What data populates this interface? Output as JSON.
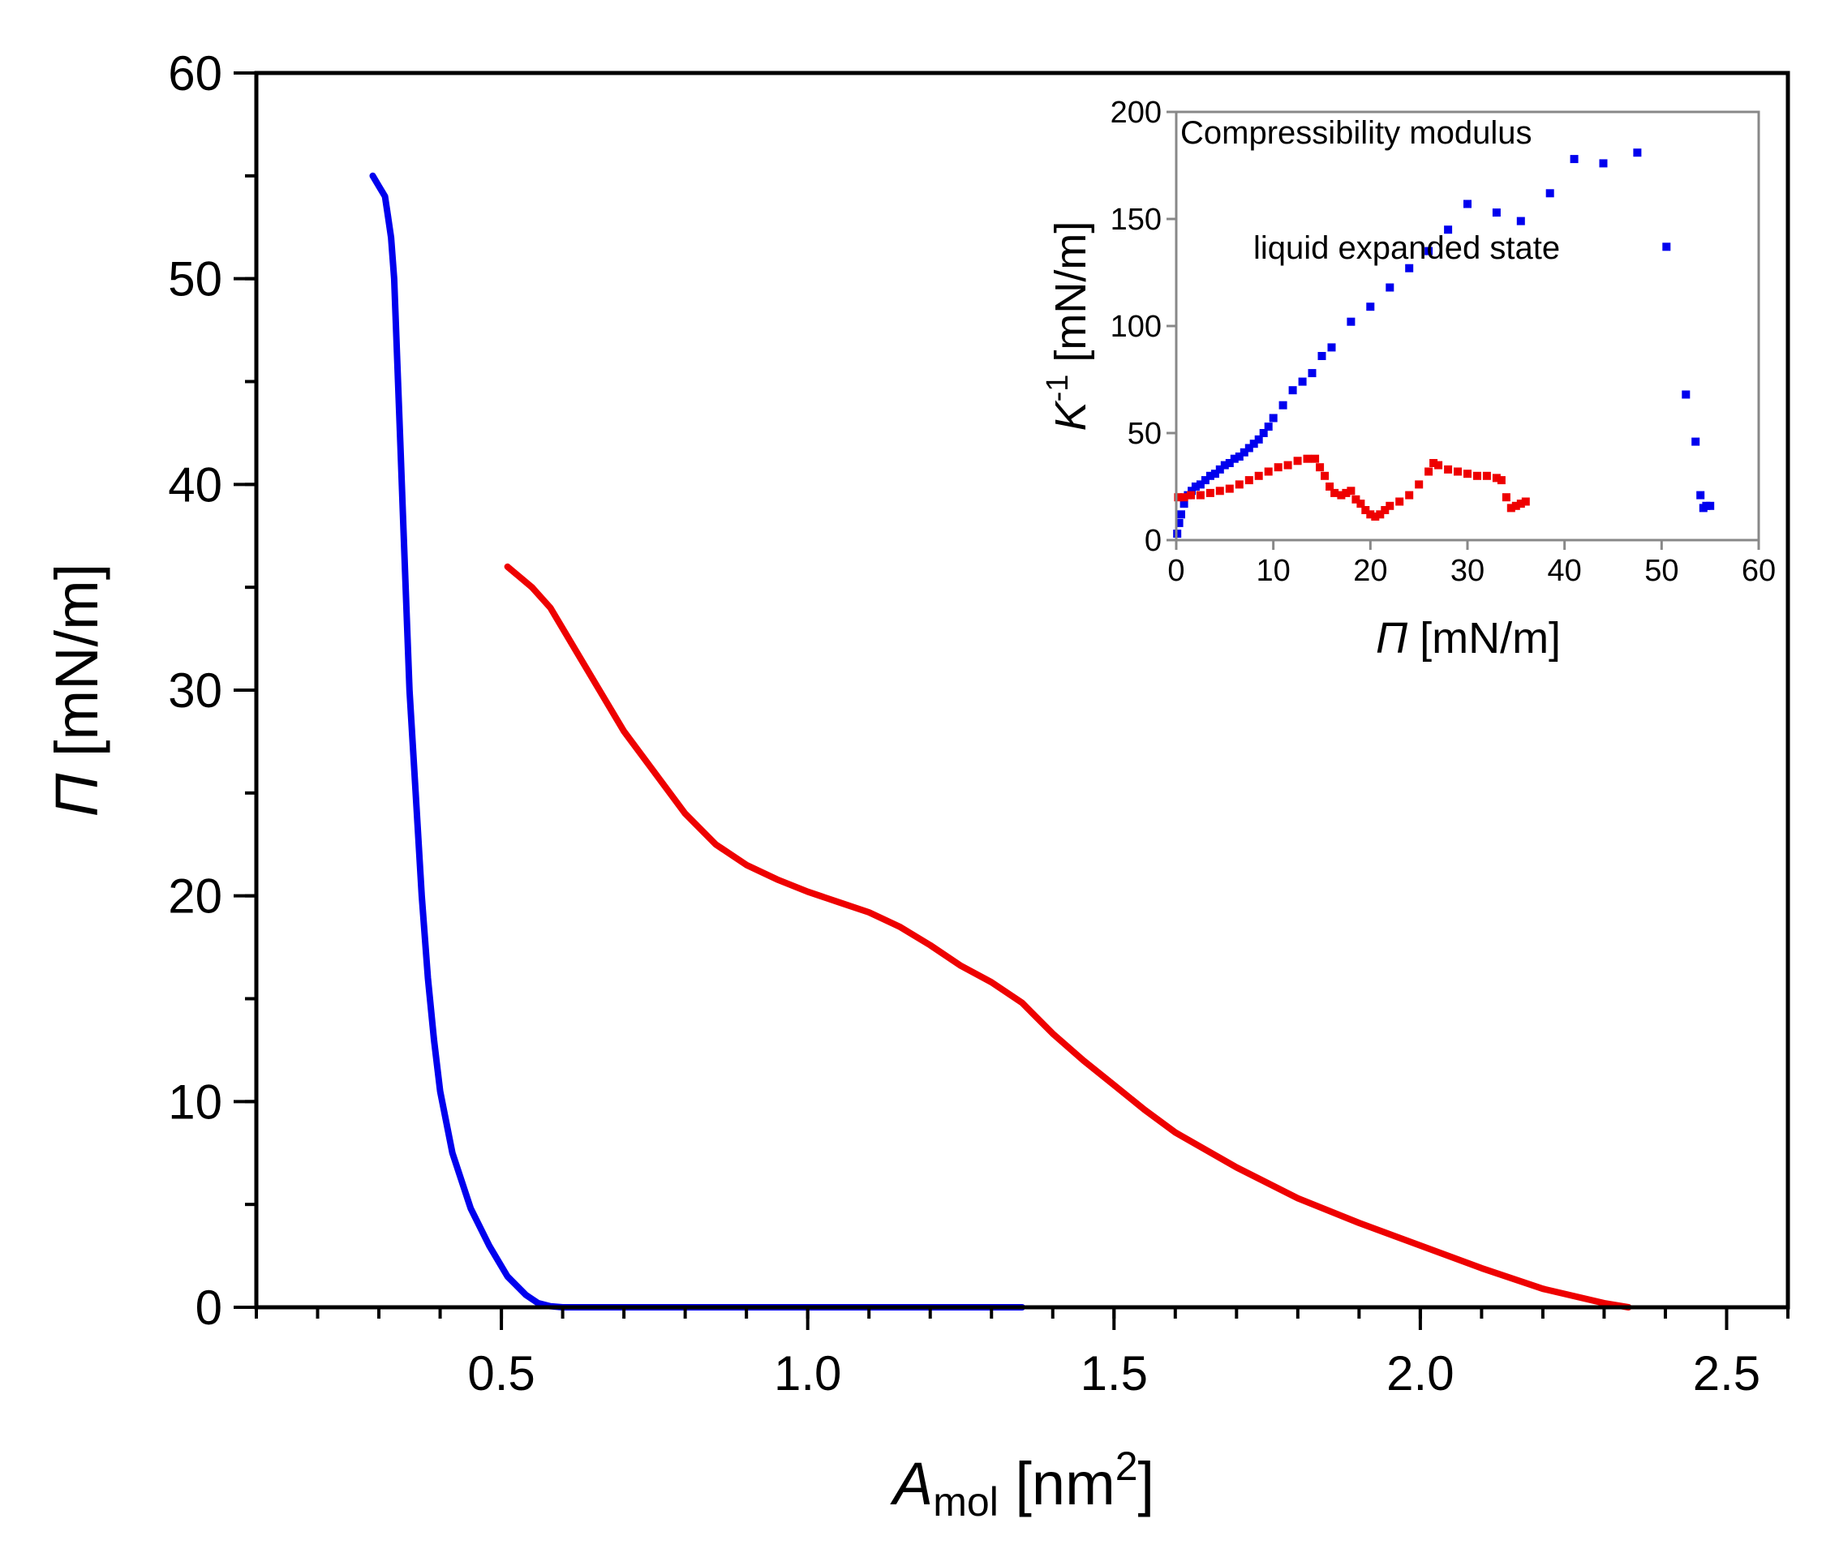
{
  "chart_data": [
    {
      "type": "line",
      "title": "",
      "xlabel": "A mol [nm2]",
      "xlabel_parts": {
        "symbol": "A",
        "subscript": "mol",
        "unit_open": " [nm",
        "unit_sup": "2",
        "unit_close": "]"
      },
      "ylabel": "Π [mN/m]",
      "ylabel_parts": {
        "symbol": "Π",
        "unit": " [mN/m]"
      },
      "xlim": [
        0.1,
        2.6
      ],
      "ylim": [
        0,
        60
      ],
      "xticks": [
        0.5,
        1.0,
        1.5,
        2.0,
        2.5
      ],
      "xtick_labels": [
        "0.5",
        "1.0",
        "1.5",
        "2.0",
        "2.5"
      ],
      "xminor": 0.1,
      "yticks": [
        0,
        10,
        20,
        30,
        40,
        50,
        60
      ],
      "ytick_labels": [
        "0",
        "10",
        "20",
        "30",
        "40",
        "50",
        "60"
      ],
      "yminor": 5,
      "grid": false,
      "series": [
        {
          "name": "blue isotherm",
          "color": "#0000ee",
          "x": [
            0.29,
            0.3,
            0.31,
            0.315,
            0.32,
            0.325,
            0.33,
            0.335,
            0.34,
            0.345,
            0.35,
            0.36,
            0.37,
            0.38,
            0.39,
            0.4,
            0.42,
            0.45,
            0.48,
            0.51,
            0.54,
            0.56,
            0.58,
            0.6,
            0.7,
            0.9,
            1.1,
            1.35
          ],
          "y": [
            55,
            54.5,
            54,
            53,
            52,
            50,
            46,
            42,
            38,
            34,
            30,
            25,
            20,
            16,
            13,
            10.5,
            7.5,
            4.8,
            3,
            1.5,
            0.6,
            0.2,
            0.05,
            0,
            0,
            0,
            0,
            0
          ]
        },
        {
          "name": "red isotherm",
          "color": "#ee0000",
          "x": [
            0.51,
            0.55,
            0.58,
            0.62,
            0.66,
            0.7,
            0.75,
            0.8,
            0.85,
            0.9,
            0.95,
            1.0,
            1.05,
            1.1,
            1.15,
            1.2,
            1.25,
            1.3,
            1.35,
            1.4,
            1.45,
            1.5,
            1.55,
            1.6,
            1.7,
            1.8,
            1.9,
            2.0,
            2.1,
            2.2,
            2.3,
            2.34
          ],
          "y": [
            36,
            35,
            34,
            32,
            30,
            28,
            26,
            24,
            22.5,
            21.5,
            20.8,
            20.2,
            19.7,
            19.2,
            18.5,
            17.6,
            16.6,
            15.8,
            14.8,
            13.3,
            12,
            10.8,
            9.6,
            8.5,
            6.8,
            5.3,
            4.1,
            3,
            1.9,
            0.9,
            0.2,
            0
          ]
        }
      ]
    },
    {
      "type": "scatter",
      "title": "Compressibility modulus",
      "annotation": "liquid expanded state",
      "xlabel": "Π [mN/m]",
      "xlabel_parts": {
        "symbol": "Π",
        "unit": " [mN/m]"
      },
      "ylabel": "K-1 [mN/m]",
      "ylabel_parts": {
        "symbol": "K",
        "sup": "-1",
        "unit": " [mN/m]"
      },
      "xlim": [
        0,
        60
      ],
      "ylim": [
        0,
        200
      ],
      "xticks": [
        0,
        10,
        20,
        30,
        40,
        50,
        60
      ],
      "xtick_labels": [
        "0",
        "10",
        "20",
        "30",
        "40",
        "50",
        "60"
      ],
      "yticks": [
        0,
        50,
        100,
        150,
        200
      ],
      "ytick_labels": [
        "0",
        "50",
        "100",
        "150",
        "200"
      ],
      "grid": false,
      "series": [
        {
          "name": "blue",
          "color": "#0000ee",
          "x": [
            0.1,
            0.3,
            0.5,
            0.8,
            1.2,
            1.6,
            2.0,
            2.5,
            3.0,
            3.5,
            4.0,
            4.5,
            5.0,
            5.5,
            6.0,
            6.5,
            7.0,
            7.5,
            8.0,
            8.5,
            9.0,
            9.5,
            10.0,
            11.0,
            12.0,
            13.0,
            14.0,
            15.0,
            16.0,
            18.0,
            20.0,
            22.0,
            24.0,
            26.0,
            28.0,
            30.0,
            33.0,
            35.5,
            38.5,
            41.0,
            44.0,
            47.5,
            50.5,
            52.5,
            53.5,
            54.0,
            54.3,
            54.6,
            55.0
          ],
          "y": [
            3,
            8,
            12,
            17,
            21,
            23,
            25,
            26,
            28,
            30,
            31,
            33,
            35,
            36,
            38,
            39,
            41,
            43,
            45,
            47,
            50,
            53,
            57,
            63,
            70,
            74,
            78,
            86,
            90,
            102,
            109,
            118,
            127,
            135,
            145,
            157,
            153,
            149,
            162,
            178,
            176,
            181,
            137,
            68,
            46,
            21,
            15,
            16,
            16
          ]
        },
        {
          "name": "red",
          "color": "#ee0000",
          "x": [
            0.2,
            0.8,
            1.5,
            2.5,
            3.5,
            4.5,
            5.5,
            6.5,
            7.5,
            8.5,
            9.5,
            10.5,
            11.5,
            12.5,
            13.5,
            14.3,
            14.8,
            15.3,
            15.8,
            16.3,
            17.0,
            17.5,
            18.0,
            18.5,
            19.0,
            19.5,
            20.0,
            20.5,
            21.0,
            21.5,
            22.0,
            23.0,
            24.0,
            25.0,
            26.0,
            26.5,
            27.0,
            28.0,
            29.0,
            30.0,
            31.0,
            32.0,
            33.0,
            33.5,
            34.0,
            34.5,
            35.0,
            35.5,
            36.0
          ],
          "y": [
            20,
            20,
            21,
            21,
            22,
            23,
            24,
            26,
            28,
            30,
            32,
            34,
            35,
            37,
            38,
            38,
            34,
            30,
            25,
            22,
            21,
            22,
            23,
            19,
            17,
            14,
            12,
            11,
            12,
            14,
            16,
            18,
            21,
            26,
            32,
            36,
            35,
            33,
            32,
            31,
            30,
            30,
            29,
            28,
            20,
            15,
            16,
            17,
            18
          ]
        }
      ]
    }
  ]
}
